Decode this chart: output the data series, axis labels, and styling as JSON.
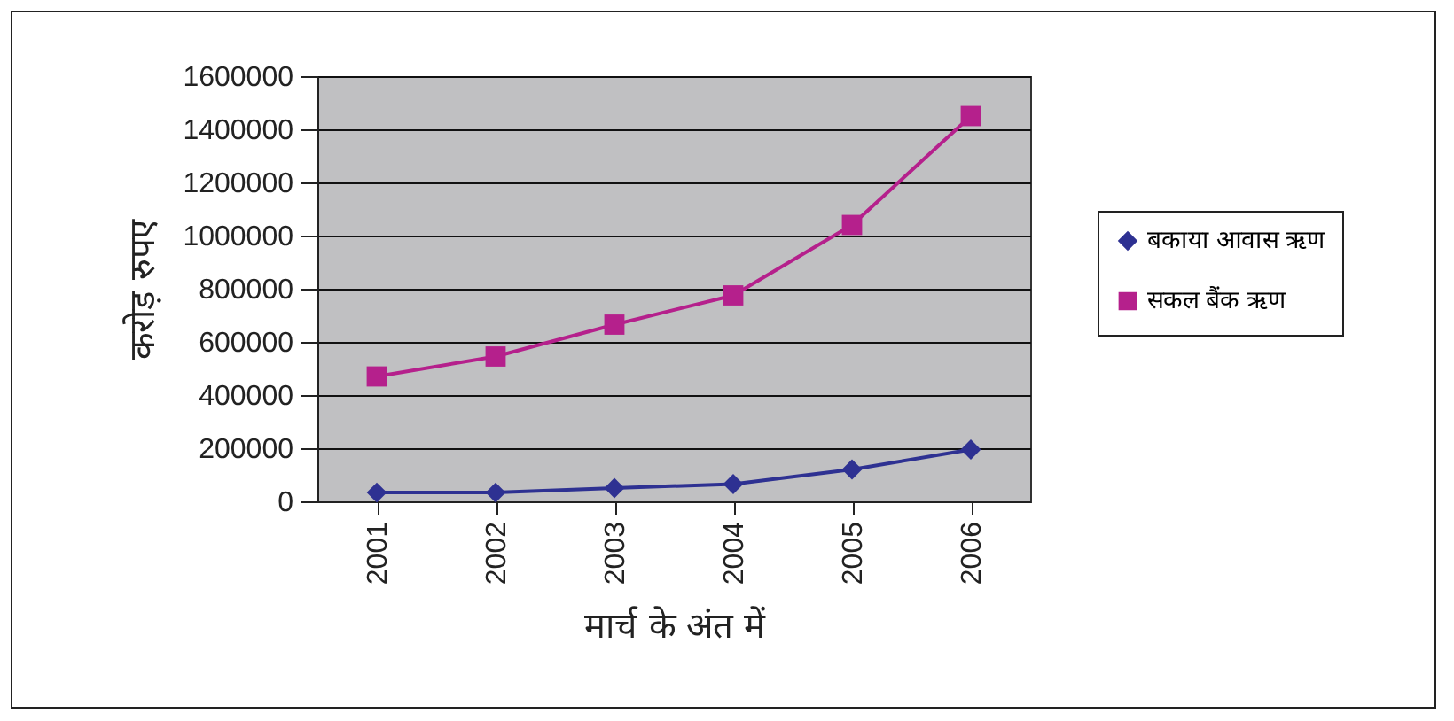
{
  "chart_data": {
    "type": "line",
    "xlabel": "मार्च के अंत में",
    "ylabel": "करोड़ रुपए",
    "categories": [
      "2001",
      "2002",
      "2003",
      "2004",
      "2005",
      "2006"
    ],
    "series": [
      {
        "name": "बकाया आवास ऋण",
        "color": "#2e3192",
        "marker": "diamond",
        "values": [
          33000,
          33000,
          50000,
          65000,
          120000,
          195000
        ]
      },
      {
        "name": "सकल बैंक ऋण",
        "color": "#b5208c",
        "marker": "square",
        "values": [
          470000,
          545000,
          665000,
          775000,
          1040000,
          1450000
        ]
      }
    ],
    "ylim": [
      0,
      1600000
    ],
    "yticks": [
      0,
      200000,
      400000,
      600000,
      800000,
      1000000,
      1200000,
      1400000,
      1600000
    ],
    "grid": "y",
    "legend": "right"
  }
}
